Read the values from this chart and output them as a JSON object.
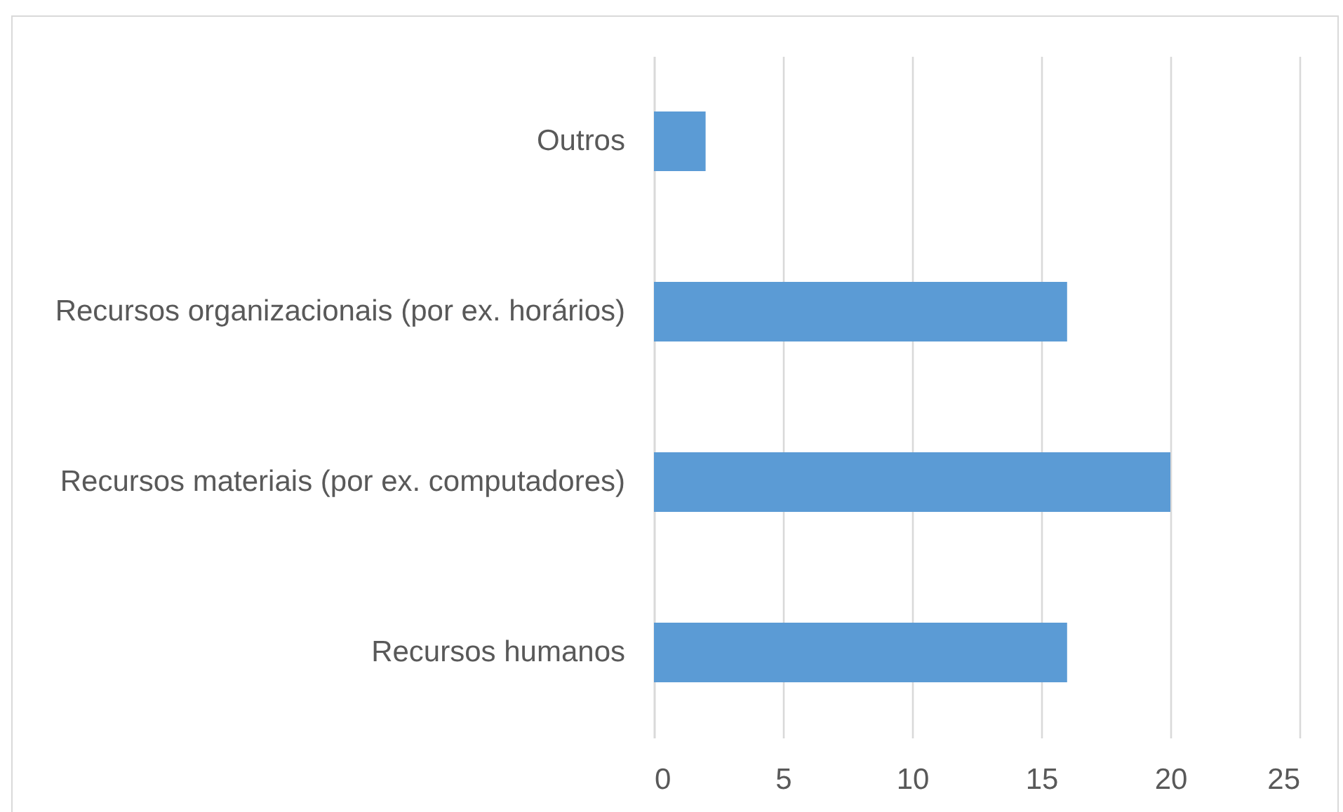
{
  "chart_data": {
    "type": "bar",
    "orientation": "horizontal",
    "categories": [
      "Outros",
      "Recursos organizacionais (por ex. horários)",
      "Recursos materiais (por ex. computadores)",
      "Recursos humanos"
    ],
    "values": [
      2,
      16,
      20,
      16
    ],
    "color": "#5b9bd5",
    "xlim": [
      0,
      25
    ],
    "xticks": [
      0,
      5,
      10,
      15,
      20,
      25
    ],
    "grid": "x"
  }
}
